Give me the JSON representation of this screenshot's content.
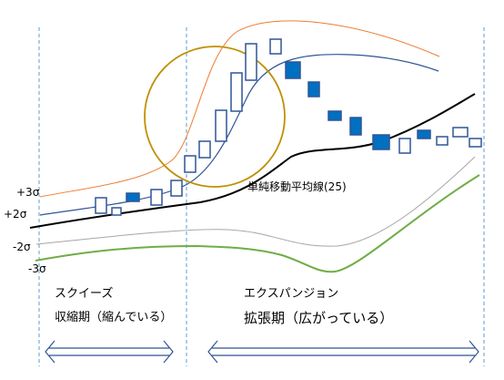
{
  "colors": {
    "band_plus3": "#ed7d31",
    "band_plus2": "#2f5597",
    "moving_average": "#000000",
    "band_minus2": "#a6a6a6",
    "band_minus3": "#70ad47",
    "candle_outline": "#2f5597",
    "candle_fill": "#0070c0",
    "circle": "#bf9000",
    "divider": "#5b9bd5",
    "arrow": "#2f5597"
  },
  "labels": {
    "sigma_plus3": "+3σ",
    "sigma_plus2": "+2σ",
    "sigma_minus2": "-2σ",
    "sigma_minus3": "-3σ",
    "moving_average": "単純移動平均線(25)"
  },
  "phases": {
    "squeeze": {
      "title": "スクイーズ",
      "subtitle": "収縮期（縮んでいる）"
    },
    "expansion": {
      "title": "エクスパンジョン",
      "subtitle": "拡張期（広がっている）"
    }
  }
}
